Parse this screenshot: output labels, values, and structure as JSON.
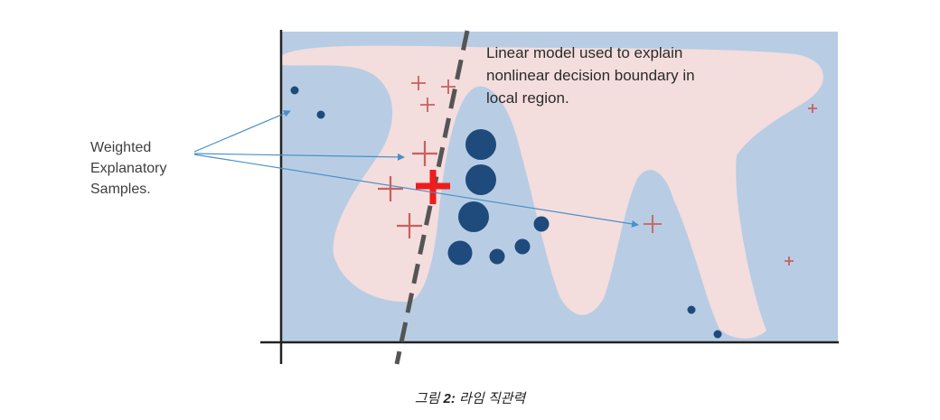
{
  "annotation": {
    "line1": "Linear model used to explain",
    "line2": "nonlinear decision boundary in",
    "line3": "local region."
  },
  "side_label": {
    "line1": "Weighted",
    "line2": "Explanatory",
    "line3": "Samples."
  },
  "caption": {
    "prefix": "그림 ",
    "number": "2:",
    "text": " 라임 직관력"
  },
  "colors": {
    "background_region": "#b8cde4",
    "decision_region": "#f4dddd",
    "dot": "#1f4a7c",
    "plus": "#c86060",
    "highlight_plus": "#ee1c1c",
    "dashed_line": "#555555",
    "arrow": "#4a90c8",
    "axis": "#222222"
  }
}
